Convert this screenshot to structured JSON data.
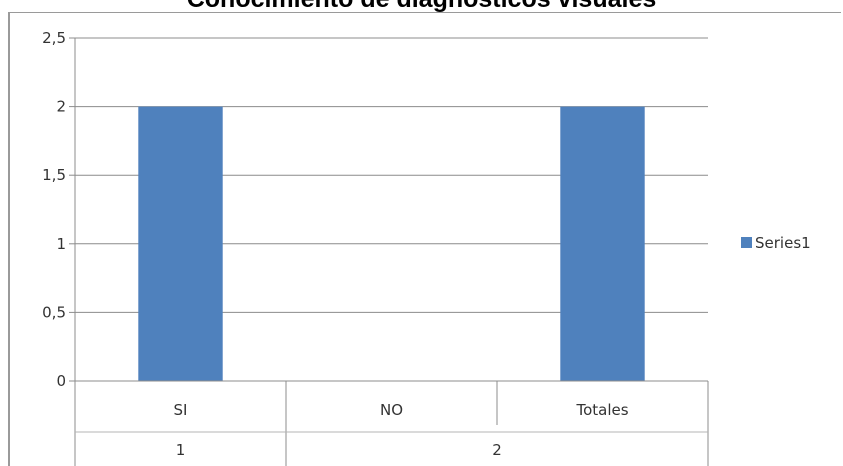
{
  "chart_data": {
    "type": "bar",
    "title": "Conocimiento de diagnósticos visuales",
    "categories": [
      "SI",
      "NO",
      "Totales"
    ],
    "groups": [
      {
        "label": "1",
        "categories": [
          "SI"
        ]
      },
      {
        "label": "2",
        "categories": [
          "NO",
          "Totales"
        ]
      }
    ],
    "series": [
      {
        "name": "Series1",
        "values": [
          2,
          null,
          2
        ],
        "color": "#4f81bd"
      }
    ],
    "ylim": [
      0,
      2.5
    ],
    "yticks": [
      "0",
      "0,5",
      "1",
      "1,5",
      "2",
      "2,5"
    ],
    "grid": true,
    "legend": "right"
  }
}
